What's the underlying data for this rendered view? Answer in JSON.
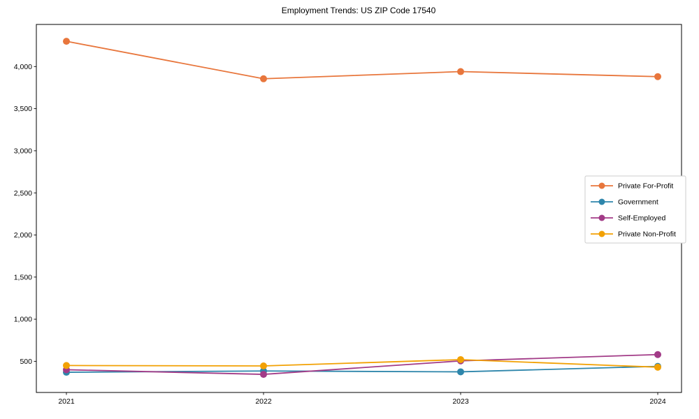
{
  "figure": {
    "title": "Employment Trends: US ZIP Code 17540"
  },
  "chart_data": {
    "type": "line",
    "title": "Employment Trends: US ZIP Code 17540",
    "x": [
      "2021",
      "2022",
      "2023",
      "2024"
    ],
    "series": [
      {
        "name": "Private For-Profit",
        "color": "#E8763C",
        "values": [
          4300,
          3855,
          3940,
          3880
        ]
      },
      {
        "name": "Government",
        "color": "#2E86AB",
        "values": [
          370,
          385,
          375,
          440
        ]
      },
      {
        "name": "Self-Employed",
        "color": "#A23B87",
        "values": [
          400,
          345,
          505,
          580
        ]
      },
      {
        "name": "Private Non-Profit",
        "color": "#F2A104",
        "values": [
          450,
          445,
          520,
          430
        ]
      }
    ],
    "xlabel": "",
    "ylabel": "",
    "ylim": [
      130,
      4500
    ],
    "yticks": [
      500,
      1000,
      1500,
      2000,
      2500,
      3000,
      3500,
      4000
    ],
    "ytick_labels": [
      "500",
      "1,000",
      "1,500",
      "2,000",
      "2,500",
      "3,000",
      "3,500",
      "4,000"
    ],
    "legend": {
      "position": "center-right",
      "entries": [
        "Private For-Profit",
        "Government",
        "Self-Employed",
        "Private Non-Profit"
      ]
    },
    "grid": false,
    "marker": "circle",
    "line_width": 1.8,
    "marker_radius": 5,
    "axis_color": "#000000",
    "legend_border_color": "#cccccc",
    "background": "#ffffff"
  }
}
